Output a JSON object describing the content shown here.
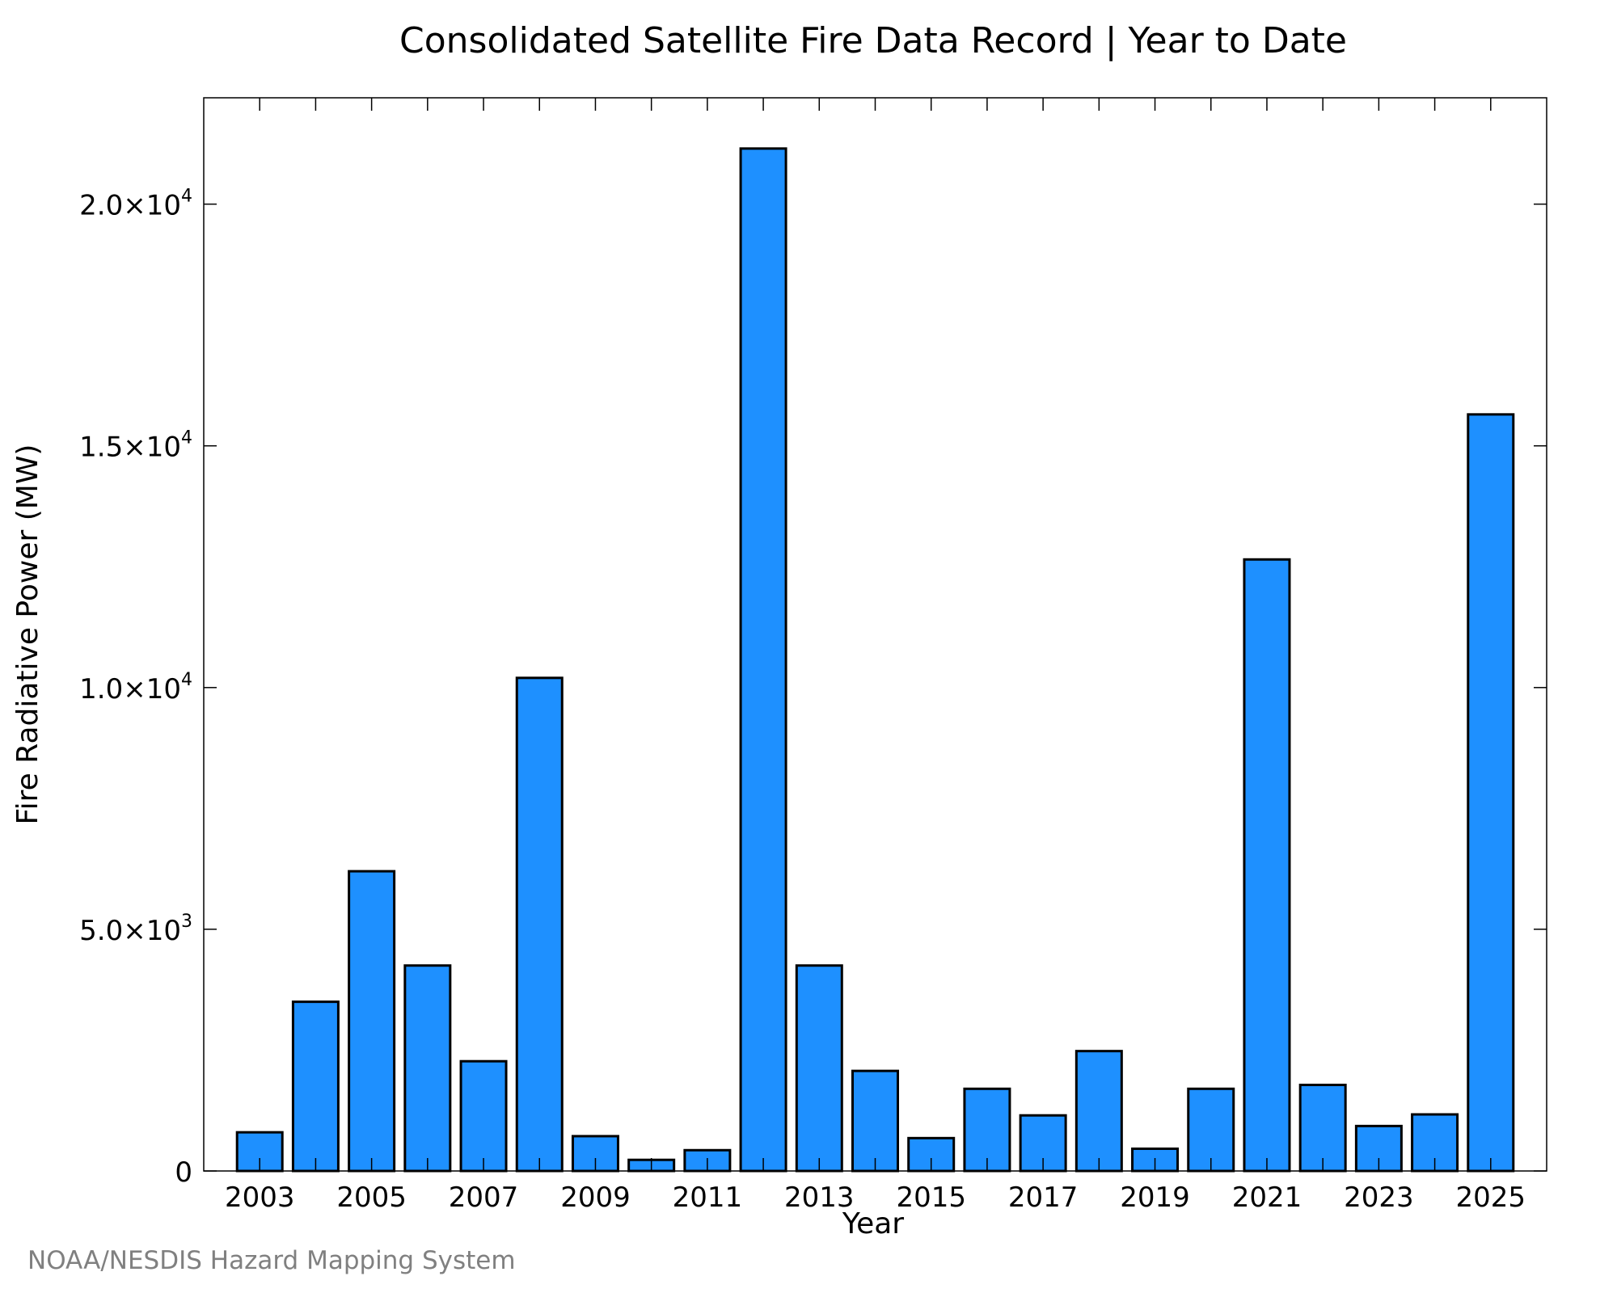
{
  "chart_data": {
    "type": "bar",
    "title": "Consolidated Satellite Fire Data Record | Year to Date",
    "xlabel": "Year",
    "ylabel": "Fire Radiative Power (MW)",
    "credit": "NOAA/NESDIS Hazard Mapping System",
    "bar_color": "#1E90FF",
    "categories": [
      2003,
      2004,
      2005,
      2006,
      2007,
      2008,
      2009,
      2010,
      2011,
      2012,
      2013,
      2014,
      2015,
      2016,
      2017,
      2018,
      2019,
      2020,
      2021,
      2022,
      2023,
      2024,
      2025
    ],
    "values": [
      800,
      3500,
      6200,
      4250,
      2270,
      10200,
      720,
      230,
      430,
      21150,
      4250,
      2070,
      680,
      1700,
      1150,
      2480,
      460,
      1700,
      12650,
      1780,
      930,
      1170,
      15650
    ],
    "ylim": [
      0,
      22200
    ],
    "xlim": [
      2002,
      2026
    ],
    "y_ticks": [
      {
        "value": 0,
        "mantissa": "0",
        "exp": ""
      },
      {
        "value": 5000,
        "mantissa": "5.0×10",
        "exp": "3"
      },
      {
        "value": 10000,
        "mantissa": "1.0×10",
        "exp": "4"
      },
      {
        "value": 15000,
        "mantissa": "1.5×10",
        "exp": "4"
      },
      {
        "value": 20000,
        "mantissa": "2.0×10",
        "exp": "4"
      }
    ],
    "x_ticks": [
      2003,
      2005,
      2007,
      2009,
      2011,
      2013,
      2015,
      2017,
      2019,
      2021,
      2023,
      2025
    ],
    "grid": false,
    "legend": "none"
  }
}
